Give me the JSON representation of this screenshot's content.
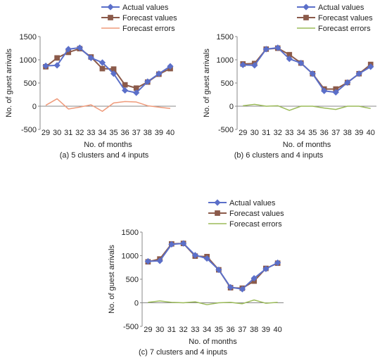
{
  "chart_data": [
    {
      "type": "line",
      "caption": "(a) 5 clusters and 4 inputs",
      "xlabel": "No. of months",
      "ylabel": "No. of guest arrivals",
      "x": [
        "29",
        "30",
        "31",
        "32",
        "33",
        "34",
        "35",
        "36",
        "37",
        "38",
        "39",
        "40"
      ],
      "ylim": [
        -500,
        1500
      ],
      "yticks": [
        "1500",
        "1000",
        "500",
        "0",
        "-500"
      ],
      "legend_position": "top-right",
      "series": [
        {
          "name": "Actual values",
          "color": "#5b6fc9",
          "marker": "diamond",
          "values": [
            870,
            880,
            1230,
            1260,
            1040,
            940,
            700,
            340,
            290,
            530,
            700,
            860
          ]
        },
        {
          "name": "Forecast values",
          "color": "#8b5a4a",
          "marker": "square",
          "values": [
            850,
            1040,
            1160,
            1240,
            1060,
            810,
            800,
            460,
            390,
            520,
            690,
            810
          ]
        },
        {
          "name": "Forecast errors",
          "color": "#ef9a7a",
          "marker": "none",
          "values": [
            20,
            160,
            -60,
            -20,
            30,
            -110,
            70,
            100,
            90,
            10,
            -20,
            -50
          ]
        }
      ]
    },
    {
      "type": "line",
      "caption": "(b) 6 clusters and 4 inputs",
      "xlabel": "No. of months",
      "ylabel": "No. of guest arrivals",
      "x": [
        "29",
        "30",
        "31",
        "32",
        "33",
        "34",
        "35",
        "36",
        "37",
        "38",
        "39",
        "40"
      ],
      "ylim": [
        -500,
        1500
      ],
      "yticks": [
        "1500",
        "1000",
        "500",
        "0",
        "-500"
      ],
      "legend_position": "top-right",
      "series": [
        {
          "name": "Actual values",
          "color": "#5b6fc9",
          "marker": "diamond",
          "values": [
            890,
            880,
            1230,
            1260,
            1020,
            930,
            700,
            330,
            300,
            510,
            700,
            850
          ]
        },
        {
          "name": "Forecast values",
          "color": "#8b5a4a",
          "marker": "square",
          "values": [
            910,
            920,
            1230,
            1250,
            1110,
            930,
            700,
            370,
            370,
            510,
            700,
            900
          ]
        },
        {
          "name": "Forecast errors",
          "color": "#9bbb59",
          "marker": "none",
          "values": [
            10,
            40,
            0,
            10,
            -90,
            0,
            0,
            -40,
            -70,
            0,
            0,
            -50
          ]
        }
      ]
    },
    {
      "type": "line",
      "caption": "(c) 7 clusters and 4 inputs",
      "xlabel": "No. of months",
      "ylabel": "No. of guest arrivals",
      "x": [
        "29",
        "30",
        "31",
        "32",
        "33",
        "34",
        "35",
        "36",
        "37",
        "38",
        "39",
        "40"
      ],
      "ylim": [
        -500,
        1500
      ],
      "yticks": [
        "1500",
        "1000",
        "500",
        "0",
        "-500"
      ],
      "legend_position": "top-right",
      "series": [
        {
          "name": "Actual values",
          "color": "#5b6fc9",
          "marker": "diamond",
          "values": [
            880,
            890,
            1240,
            1260,
            1010,
            940,
            700,
            330,
            290,
            520,
            720,
            850
          ]
        },
        {
          "name": "Forecast values",
          "color": "#8b5a4a",
          "marker": "square",
          "values": [
            870,
            930,
            1250,
            1260,
            990,
            980,
            700,
            320,
            310,
            460,
            730,
            840
          ]
        },
        {
          "name": "Forecast errors",
          "color": "#9bbb59",
          "marker": "none",
          "values": [
            10,
            40,
            10,
            0,
            20,
            -40,
            0,
            10,
            -20,
            60,
            -10,
            10
          ]
        }
      ]
    }
  ]
}
